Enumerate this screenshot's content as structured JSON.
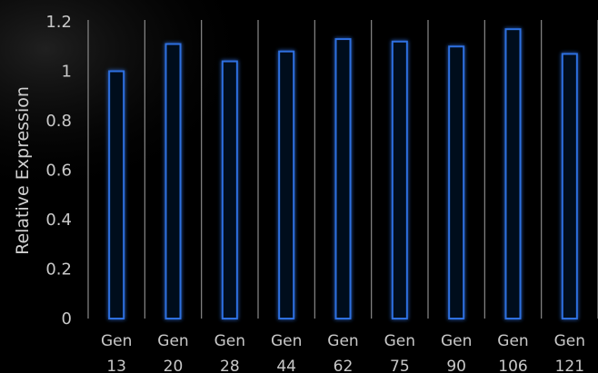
{
  "chart_data": {
    "type": "bar",
    "categories": [
      [
        "Gen",
        "13"
      ],
      [
        "Gen",
        "20"
      ],
      [
        "Gen",
        "28"
      ],
      [
        "Gen",
        "44"
      ],
      [
        "Gen",
        "62"
      ],
      [
        "Gen",
        "75"
      ],
      [
        "Gen",
        "90"
      ],
      [
        "Gen",
        "106"
      ],
      [
        "Gen",
        "121"
      ]
    ],
    "values": [
      1.0,
      1.11,
      1.04,
      1.08,
      1.13,
      1.12,
      1.1,
      1.17,
      1.07
    ],
    "ylabel": "Relative Expression",
    "xlabel": "",
    "title": "",
    "ylim": [
      0,
      1.2
    ],
    "yticks": [
      "0",
      "0.2",
      "0.4",
      "0.6",
      "0.8",
      "1",
      "1.2"
    ],
    "grid": "vertical separators",
    "legend": "none",
    "colors": {
      "background": "#000000",
      "bar_stroke": "#2f6fe0",
      "bar_glow": "#1d4fbf",
      "separator": "#8a8a8a",
      "text": "#c8c8c8"
    }
  }
}
